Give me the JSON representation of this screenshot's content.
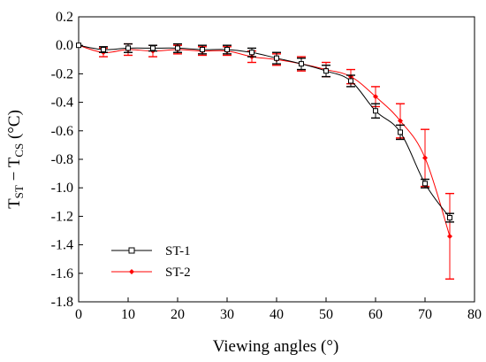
{
  "chart_data": {
    "type": "line",
    "xlabel": "Viewing angles (°)",
    "ylabel": {
      "main": "T",
      "sub1": "ST",
      "minus": " − T",
      "sub2": "CS",
      "unit": " (°C)"
    },
    "xlim": [
      0,
      80
    ],
    "ylim": [
      -1.8,
      0.2
    ],
    "xticks": [
      "0",
      "10",
      "20",
      "30",
      "40",
      "50",
      "60",
      "70",
      "80"
    ],
    "yticks": [
      "0.2",
      "0.0",
      "-0.2",
      "-0.4",
      "-0.6",
      "-0.8",
      "-1.0",
      "-1.2",
      "-1.4",
      "-1.6",
      "-1.8"
    ],
    "grid": false,
    "legend_position": "bottom-left",
    "x": [
      0,
      5,
      10,
      15,
      20,
      25,
      30,
      35,
      40,
      45,
      50,
      55,
      60,
      65,
      70,
      75
    ],
    "series": [
      {
        "name": "ST-1",
        "color": "#000000",
        "marker": "square",
        "values": [
          0.0,
          -0.03,
          -0.02,
          -0.02,
          -0.02,
          -0.03,
          -0.03,
          -0.05,
          -0.09,
          -0.13,
          -0.18,
          -0.25,
          -0.46,
          -0.61,
          -0.97,
          -1.21
        ],
        "errors": [
          0.0,
          0.02,
          0.03,
          0.02,
          0.03,
          0.03,
          0.03,
          0.03,
          0.04,
          0.04,
          0.04,
          0.04,
          0.05,
          0.05,
          0.03,
          0.03
        ]
      },
      {
        "name": "ST-2",
        "color": "#ff0000",
        "marker": "diamond",
        "values": [
          0.0,
          -0.05,
          -0.03,
          -0.04,
          -0.03,
          -0.04,
          -0.04,
          -0.08,
          -0.1,
          -0.13,
          -0.17,
          -0.22,
          -0.36,
          -0.53,
          -0.79,
          -1.34
        ],
        "errors": [
          0.0,
          0.03,
          0.04,
          0.04,
          0.03,
          0.03,
          0.03,
          0.04,
          0.04,
          0.05,
          0.05,
          0.05,
          0.07,
          0.12,
          0.2,
          0.3
        ]
      }
    ]
  }
}
